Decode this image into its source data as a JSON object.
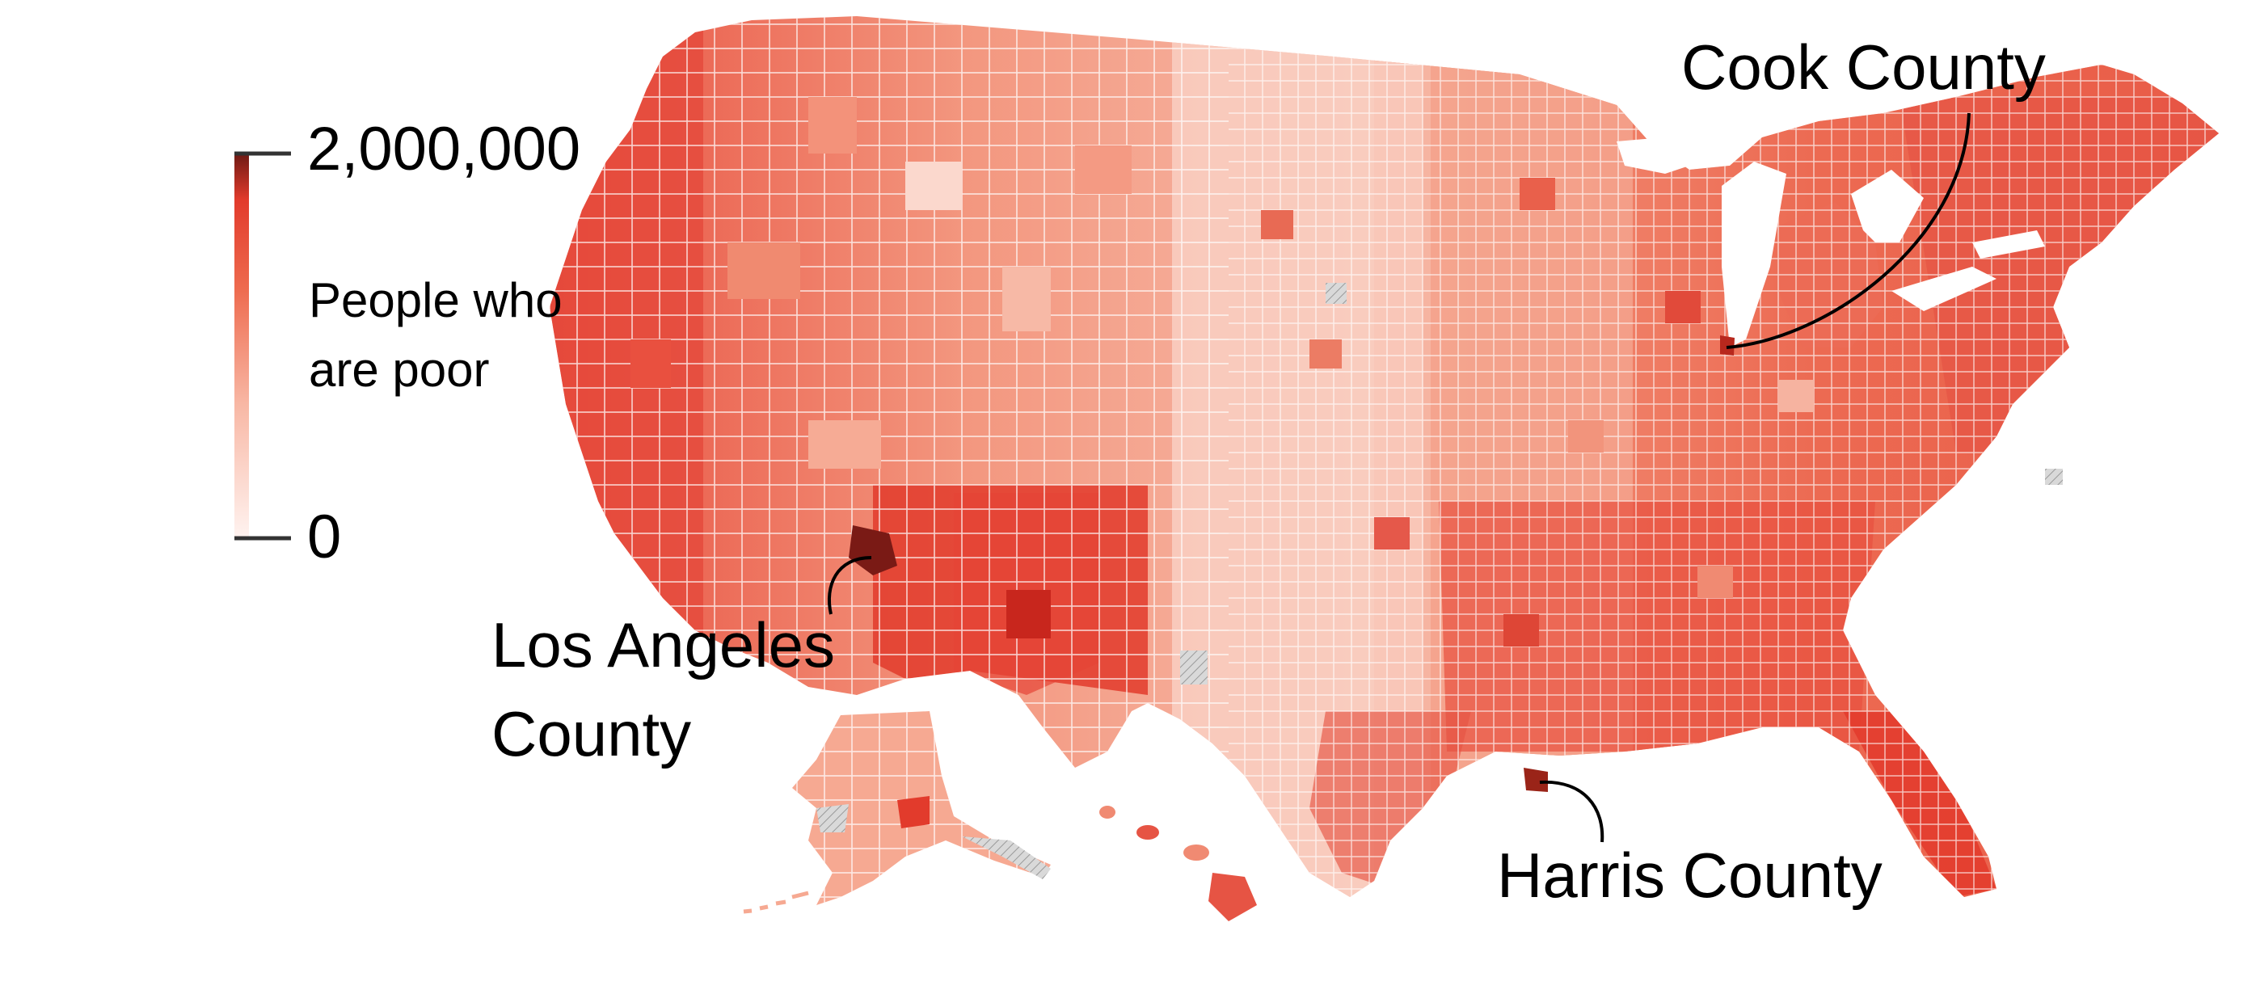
{
  "legend": {
    "max_label": "2,000,000",
    "min_label": "0",
    "title_line1": "People who",
    "title_line2": "are poor",
    "colors": [
      "#fde7e3",
      "#f6a98e",
      "#ee6a4e",
      "#e23b2c",
      "#6e1a14"
    ]
  },
  "annotations": {
    "cook": "Cook County",
    "la_line1": "Los Angeles",
    "la_line2": "County",
    "harris": "Harris County"
  },
  "palette": {
    "lightest": "#fde2db",
    "light": "#f8b7a4",
    "mid": "#f07a60",
    "strong": "#e5443a",
    "darkest": "#7a1a15",
    "border": "#ffffff",
    "nodata": "#cfcfcf"
  }
}
